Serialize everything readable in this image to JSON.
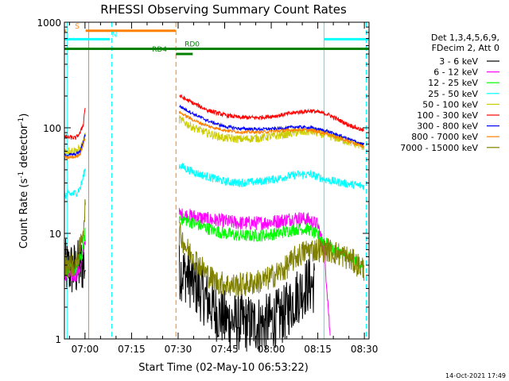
{
  "chart_data": {
    "type": "line",
    "title": "RHESSI Observing Summary Count Rates",
    "xlabel": "Start Time (02-May-10 06:53:22)",
    "ylabel": "Count Rate (s⁻¹ detector⁻¹)",
    "ylabel_parts": {
      "a": "Count Rate (s",
      "b": "-1",
      "c": " detector",
      "d": "-1",
      "e": ")"
    },
    "y_scale": "log",
    "ylim": [
      1,
      1000
    ],
    "xlim_minutes": [
      53.37,
      151.5
    ],
    "x_ticks": [
      {
        "label": "07:00",
        "m": 60
      },
      {
        "label": "07:15",
        "m": 75
      },
      {
        "label": "07:30",
        "m": 90
      },
      {
        "label": "07:45",
        "m": 105
      },
      {
        "label": "08:00",
        "m": 120
      },
      {
        "label": "08:15",
        "m": 135
      },
      {
        "label": "08:30",
        "m": 150
      }
    ],
    "y_ticks": [
      {
        "label": "1",
        "v": 1
      },
      {
        "label": "10",
        "v": 10
      },
      {
        "label": "100",
        "v": 100
      },
      {
        "label": "1000",
        "v": 1000
      }
    ],
    "legend": {
      "position": "right",
      "header": [
        "Det 1,3,4,5,6,9,",
        "FDecim 2, Att 0"
      ]
    },
    "series": [
      {
        "name": "3 - 6 keV",
        "color": "#000000",
        "points": [
          [
            53.4,
            4.7
          ],
          [
            57,
            4.5
          ],
          [
            58.8,
            5
          ],
          [
            59.5,
            5.2
          ],
          [
            60,
            5
          ],
          [
            90.5,
            4.4
          ],
          [
            93,
            4
          ],
          [
            96,
            3
          ],
          [
            99,
            2.4
          ],
          [
            102,
            1.8
          ],
          [
            106,
            1.5
          ],
          [
            112,
            1.4
          ],
          [
            118,
            1.4
          ],
          [
            124,
            1.7
          ],
          [
            128,
            2.5
          ],
          [
            132,
            3.3
          ],
          [
            134,
            3.2
          ]
        ],
        "noise": 0.28
      },
      {
        "name": "6 - 12 keV",
        "color": "#ff00ff",
        "points": [
          [
            53.4,
            4
          ],
          [
            57,
            4
          ],
          [
            58.8,
            5
          ],
          [
            59.5,
            7
          ],
          [
            60,
            9
          ],
          [
            90.5,
            15
          ],
          [
            95,
            14.5
          ],
          [
            100,
            13.5
          ],
          [
            105,
            13
          ],
          [
            110,
            12.5
          ],
          [
            116,
            12.5
          ],
          [
            122,
            13
          ],
          [
            128,
            14
          ],
          [
            132,
            13.5
          ],
          [
            135,
            12
          ],
          [
            137,
            7
          ],
          [
            138,
            3
          ],
          [
            139,
            1
          ]
        ],
        "noise": 0.07
      },
      {
        "name": "12 - 25 keV",
        "color": "#00ff00",
        "points": [
          [
            53.4,
            4.5
          ],
          [
            57,
            4.5
          ],
          [
            58.8,
            6
          ],
          [
            59.5,
            8
          ],
          [
            60,
            10
          ],
          [
            90.5,
            14
          ],
          [
            95,
            12.5
          ],
          [
            100,
            11
          ],
          [
            105,
            10
          ],
          [
            110,
            9.5
          ],
          [
            116,
            9.5
          ],
          [
            122,
            10
          ],
          [
            128,
            11
          ],
          [
            132,
            11
          ],
          [
            136,
            9
          ],
          [
            140,
            7
          ],
          [
            145,
            6
          ],
          [
            150,
            5
          ]
        ],
        "noise": 0.06
      },
      {
        "name": "25 - 50 keV",
        "color": "#00ffff",
        "points": [
          [
            53.4,
            23
          ],
          [
            57,
            24
          ],
          [
            58.5,
            27
          ],
          [
            59.5,
            35
          ],
          [
            60,
            40
          ],
          [
            90.5,
            44
          ],
          [
            95,
            38
          ],
          [
            100,
            34
          ],
          [
            105,
            31
          ],
          [
            110,
            30
          ],
          [
            116,
            31
          ],
          [
            122,
            33
          ],
          [
            128,
            36
          ],
          [
            133,
            36
          ],
          [
            138,
            32
          ],
          [
            143,
            30
          ],
          [
            150,
            28
          ]
        ],
        "noise": 0.04
      },
      {
        "name": "50 - 100 keV",
        "color": "#cccc00",
        "points": [
          [
            53.4,
            60
          ],
          [
            57,
            61
          ],
          [
            58.5,
            63
          ],
          [
            59.5,
            75
          ],
          [
            60,
            85
          ],
          [
            90.5,
            120
          ],
          [
            95,
            100
          ],
          [
            100,
            88
          ],
          [
            105,
            80
          ],
          [
            110,
            78
          ],
          [
            116,
            80
          ],
          [
            122,
            84
          ],
          [
            128,
            90
          ],
          [
            133,
            92
          ],
          [
            138,
            85
          ],
          [
            144,
            75
          ],
          [
            150,
            66
          ]
        ],
        "noise": 0.04
      },
      {
        "name": "100 - 300 keV",
        "color": "#ff0000",
        "points": [
          [
            53.4,
            82
          ],
          [
            57,
            80
          ],
          [
            58.5,
            90
          ],
          [
            59.5,
            110
          ],
          [
            60,
            155
          ],
          [
            90.5,
            200
          ],
          [
            95,
            170
          ],
          [
            100,
            145
          ],
          [
            105,
            132
          ],
          [
            110,
            125
          ],
          [
            116,
            125
          ],
          [
            122,
            130
          ],
          [
            128,
            140
          ],
          [
            133,
            145
          ],
          [
            138,
            135
          ],
          [
            144,
            110
          ],
          [
            150,
            93
          ]
        ],
        "noise": 0.02
      },
      {
        "name": "300 - 800 keV",
        "color": "#0000ff",
        "points": [
          [
            53.4,
            55
          ],
          [
            57,
            56
          ],
          [
            58.5,
            60
          ],
          [
            59.5,
            75
          ],
          [
            60,
            85
          ],
          [
            90.5,
            160
          ],
          [
            95,
            135
          ],
          [
            100,
            115
          ],
          [
            105,
            103
          ],
          [
            110,
            98
          ],
          [
            116,
            97
          ],
          [
            122,
            98
          ],
          [
            128,
            102
          ],
          [
            133,
            100
          ],
          [
            138,
            93
          ],
          [
            144,
            80
          ],
          [
            150,
            69
          ]
        ],
        "noise": 0.015
      },
      {
        "name": "800 - 7000 keV",
        "color": "#ff8000",
        "points": [
          [
            53.4,
            52
          ],
          [
            57,
            53
          ],
          [
            58.5,
            57
          ],
          [
            59.5,
            70
          ],
          [
            60,
            80
          ],
          [
            90.5,
            140
          ],
          [
            95,
            118
          ],
          [
            100,
            103
          ],
          [
            105,
            95
          ],
          [
            110,
            91
          ],
          [
            116,
            91
          ],
          [
            122,
            93
          ],
          [
            128,
            96
          ],
          [
            133,
            95
          ],
          [
            138,
            88
          ],
          [
            144,
            76
          ],
          [
            150,
            66
          ]
        ],
        "noise": 0.015
      },
      {
        "name": "7000 - 15000 keV",
        "color": "#808000",
        "points": [
          [
            53.4,
            5
          ],
          [
            57,
            5
          ],
          [
            58.8,
            8
          ],
          [
            59.5,
            12
          ],
          [
            60,
            17
          ],
          [
            90.5,
            10
          ],
          [
            93,
            7
          ],
          [
            96,
            5.5
          ],
          [
            99,
            4.2
          ],
          [
            102,
            3.5
          ],
          [
            107,
            3.2
          ],
          [
            112,
            3.3
          ],
          [
            118,
            3.6
          ],
          [
            124,
            4.5
          ],
          [
            128,
            6
          ],
          [
            132,
            7
          ],
          [
            138,
            7
          ],
          [
            144,
            6
          ],
          [
            150,
            4.6
          ]
        ],
        "noise": 0.12
      }
    ],
    "gaps": [
      [
        60.2,
        90.3
      ]
    ],
    "flags": [
      {
        "label": "S",
        "color": "#ff8000",
        "segments": [
          [
            53.4,
            53.8
          ],
          [
            60.2,
            89.2
          ]
        ],
        "level": 830,
        "label_m": 57.5
      },
      {
        "label": "N",
        "color": "#00ffff",
        "segments": [
          [
            53.4,
            68
          ],
          [
            137,
            151.5
          ]
        ],
        "level": 690,
        "label_m": 69.5
      },
      {
        "label": "RD0",
        "color": "#008000",
        "segments": [
          [
            53.4,
            151.5
          ]
        ],
        "level": 560,
        "label_m": 94.5
      },
      {
        "label": "RD4",
        "color": "#008000",
        "segments": [
          [
            89.3,
            94.7
          ]
        ],
        "level": 500,
        "label_m": 84
      }
    ],
    "vlines": [
      {
        "m": 54.2,
        "color": "#00ffff",
        "dash": false
      },
      {
        "m": 61.2,
        "color": "#ff8000",
        "dash": false
      },
      {
        "m": 68.6,
        "color": "#00ffff",
        "dash": true
      },
      {
        "m": 89.3,
        "color": "#ff8000",
        "dash": true
      },
      {
        "m": 137,
        "color": "#00ffff",
        "dash": false
      },
      {
        "m": 150.6,
        "color": "#00ffff",
        "dash": true
      }
    ]
  },
  "timestamp": "14-Oct-2021 17:49"
}
